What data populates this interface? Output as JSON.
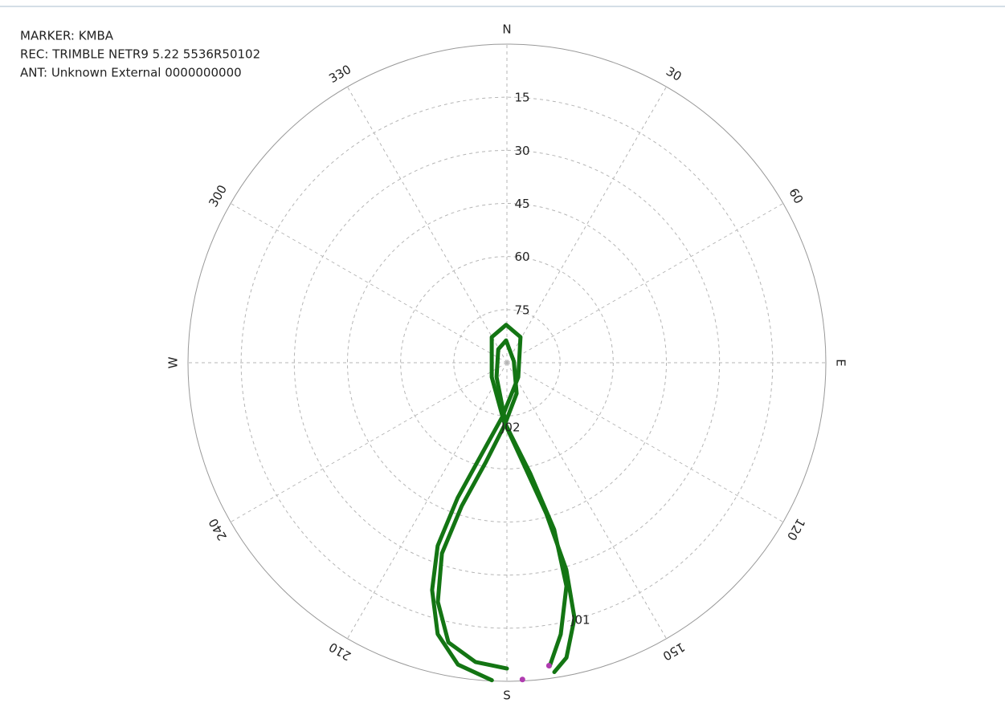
{
  "chart_data": {
    "type": "polar",
    "info": [
      "MARKER: KMBA",
      "REC: TRIMBLE NETR9 5.22 5536R50102",
      "ANT: Unknown External 0000000000"
    ],
    "rlim": [
      90,
      0
    ],
    "rticks": [
      15,
      30,
      45,
      60,
      75
    ],
    "azimuth_ticks": [
      {
        "value": 0,
        "label": "N"
      },
      30,
      60,
      {
        "value": 90,
        "label": "E"
      },
      120,
      150,
      {
        "value": 180,
        "label": "S"
      },
      210,
      240,
      {
        "value": 270,
        "label": "W"
      },
      300,
      330
    ],
    "grid": true,
    "series": [
      {
        "name": "J01",
        "color": "#137513",
        "azimuth": [
          182.7,
          189.2,
          194.3,
          198.2,
          200.7,
          200.0,
          195.3,
          185.0,
          142.1,
          27.9,
          358.8,
          329.3,
          226.5,
          183.1,
          171.2,
          165.4,
          164.0,
          165.2,
          168.6,
          171.3
        ],
        "elevation": [
          0.2,
          3.6,
          10.9,
          22.4,
          34.7,
          49.4,
          63.5,
          74.6,
          84.8,
          81.8,
          79.3,
          81.6,
          84.1,
          73.5,
          61.9,
          46.0,
          29.2,
          15.4,
          5.0,
          1.6
        ]
      },
      {
        "name": "J02",
        "color": "#137513",
        "azimuth": [
          180.0,
          186.0,
          191.8,
          196.1,
          198.8,
          197.5,
          191.9,
          182.2,
          162.5,
          77.5,
          358.0,
          327.1,
          215.8,
          180.7,
          168.1,
          164.2,
          165.1,
          168.8,
          172.0
        ],
        "elevation": [
          3.6,
          5.0,
          9.3,
          19.7,
          33.1,
          47.6,
          61.4,
          72.3,
          80.9,
          88.0,
          83.7,
          85.5,
          85.0,
          72.3,
          58.0,
          41.0,
          24.7,
          11.8,
          3.4
        ]
      },
      {
        "color": "#b03cb0",
        "marker_only": true,
        "azimuth": [
          177.2,
          172.1
        ],
        "elevation": [
          0.4,
          3.6
        ]
      }
    ]
  }
}
